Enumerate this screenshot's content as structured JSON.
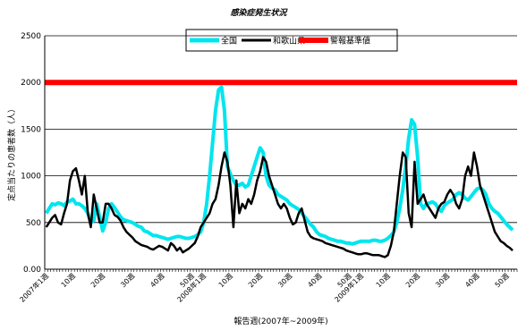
{
  "chart_data": {
    "type": "line",
    "title": "感染症発生状況",
    "xlabel": "報告週(2007年~2009年)",
    "ylabel": "定点当たりの患者数（人）",
    "ylim": [
      0,
      2500
    ],
    "yticks": [
      "0.00",
      "500",
      "1000",
      "1500",
      "2000",
      "2500"
    ],
    "xticks": [
      "2007年1週",
      "10週",
      "20週",
      "30週",
      "40週",
      "50週",
      "2008年1週",
      "10週",
      "20週",
      "30週",
      "40週",
      "50週",
      "2009年1週",
      "10週",
      "20週",
      "30週",
      "40週",
      "50週"
    ],
    "grid": true,
    "legend_position": "top-center",
    "threshold": {
      "name": "警報基準値",
      "value": 2000,
      "color": "#ff0000"
    },
    "series": [
      {
        "name": "全国",
        "color": "#00e5ee",
        "values": [
          600,
          650,
          700,
          690,
          710,
          700,
          680,
          720,
          730,
          750,
          700,
          700,
          680,
          650,
          600,
          500,
          520,
          700,
          560,
          410,
          500,
          650,
          700,
          660,
          610,
          560,
          530,
          520,
          510,
          500,
          480,
          460,
          450,
          410,
          400,
          380,
          360,
          360,
          350,
          340,
          330,
          320,
          330,
          340,
          350,
          350,
          340,
          330,
          330,
          340,
          350,
          370,
          400,
          500,
          700,
          1000,
          1350,
          1700,
          1920,
          1950,
          1700,
          1100,
          1020,
          950,
          900,
          900,
          920,
          880,
          900,
          1000,
          1100,
          1200,
          1300,
          1250,
          1000,
          900,
          870,
          850,
          800,
          780,
          760,
          740,
          700,
          680,
          660,
          640,
          600,
          560,
          520,
          480,
          450,
          400,
          370,
          360,
          350,
          330,
          320,
          310,
          300,
          300,
          290,
          280,
          280,
          270,
          280,
          290,
          300,
          300,
          300,
          300,
          310,
          310,
          300,
          300,
          310,
          330,
          360,
          400,
          500,
          650,
          850,
          1100,
          1400,
          1600,
          1550,
          1200,
          700,
          650,
          700,
          710,
          720,
          700,
          650,
          620,
          680,
          710,
          730,
          750,
          800,
          820,
          800,
          760,
          740,
          780,
          820,
          860,
          870,
          850,
          800,
          700,
          650,
          620,
          600,
          560,
          520,
          480,
          450,
          420
        ]
      },
      {
        "name": "和歌山県",
        "color": "#000000",
        "values": [
          450,
          500,
          550,
          580,
          500,
          480,
          600,
          700,
          950,
          1050,
          1080,
          950,
          800,
          1000,
          600,
          450,
          800,
          650,
          500,
          500,
          700,
          700,
          650,
          580,
          560,
          520,
          450,
          400,
          370,
          340,
          300,
          280,
          260,
          250,
          240,
          220,
          210,
          230,
          250,
          240,
          220,
          200,
          280,
          250,
          200,
          230,
          180,
          200,
          220,
          250,
          280,
          350,
          450,
          500,
          550,
          600,
          700,
          750,
          900,
          1100,
          1250,
          1150,
          900,
          450,
          950,
          600,
          700,
          650,
          750,
          700,
          800,
          950,
          1050,
          1200,
          1150,
          1000,
          900,
          800,
          700,
          650,
          700,
          650,
          550,
          480,
          500,
          600,
          650,
          520,
          400,
          350,
          330,
          320,
          310,
          300,
          280,
          270,
          260,
          250,
          240,
          230,
          220,
          200,
          190,
          180,
          170,
          160,
          160,
          170,
          170,
          160,
          150,
          150,
          150,
          140,
          130,
          150,
          250,
          400,
          700,
          1000,
          1250,
          1200,
          600,
          450,
          1150,
          700,
          750,
          800,
          700,
          650,
          600,
          550,
          650,
          700,
          720,
          800,
          850,
          800,
          700,
          650,
          750,
          1000,
          1100,
          1000,
          1250,
          1100,
          900,
          800,
          700,
          600,
          500,
          400,
          350,
          300,
          280,
          250,
          230,
          200
        ]
      }
    ]
  }
}
